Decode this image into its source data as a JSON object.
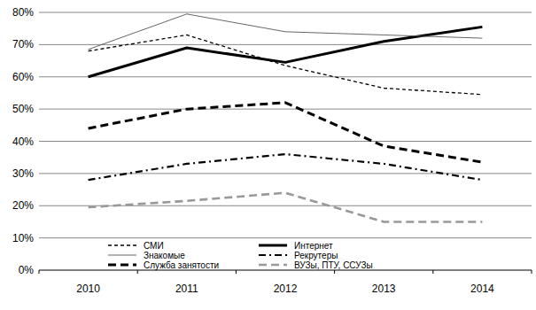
{
  "chart_data": {
    "type": "line",
    "categories": [
      "2010",
      "2011",
      "2012",
      "2013",
      "2014"
    ],
    "series": [
      {
        "name": "СМИ",
        "color": "#000000",
        "line_style": "dashed",
        "values": [
          68,
          73,
          63.5,
          56.5,
          54.5
        ]
      },
      {
        "name": "Интернет",
        "color": "#000000",
        "line_style": "solid",
        "values": [
          60,
          69,
          64.5,
          71,
          75.5
        ]
      },
      {
        "name": "Знакомые",
        "color": "#555555",
        "line_style": "solid",
        "values": [
          68.5,
          79.5,
          74,
          73,
          72
        ]
      },
      {
        "name": "Рекрутеры",
        "color": "#000000",
        "line_style": "dashdot",
        "values": [
          28,
          33,
          36,
          33,
          28
        ]
      },
      {
        "name": "Служба занятости",
        "color": "#000000",
        "line_style": "dashed",
        "values": [
          44,
          50,
          52,
          38.5,
          33.5
        ]
      },
      {
        "name": "ВУЗы, ПТУ, ССУЗы",
        "color": "#999999",
        "line_style": "dashed",
        "values": [
          19.5,
          21.5,
          24,
          15,
          15
        ]
      }
    ],
    "ylim": [
      0,
      80
    ],
    "yticks": [
      {
        "value": 0,
        "label": "0%"
      },
      {
        "value": 10,
        "label": "10%"
      },
      {
        "value": 20,
        "label": "20%"
      },
      {
        "value": 30,
        "label": "30%"
      },
      {
        "value": 40,
        "label": "40%"
      },
      {
        "value": 50,
        "label": "50%"
      },
      {
        "value": 60,
        "label": "60%"
      },
      {
        "value": 70,
        "label": "70%"
      },
      {
        "value": 80,
        "label": "80%"
      }
    ],
    "grid": true,
    "legend": "bottom"
  }
}
